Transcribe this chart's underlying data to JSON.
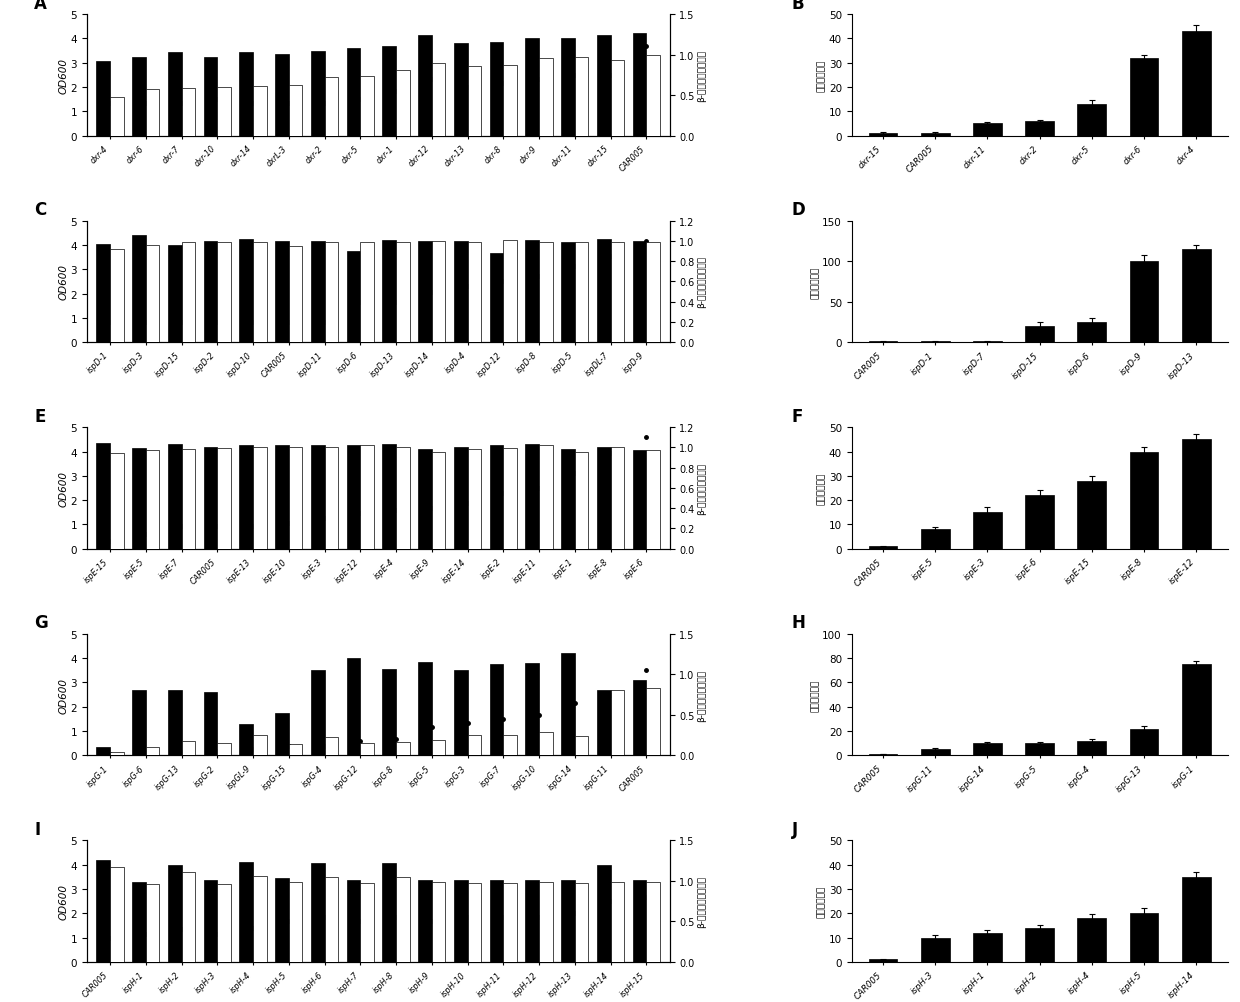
{
  "panel_A": {
    "label": "A",
    "categories": [
      "dxr-4",
      "dxr-6",
      "dxr-7",
      "dxr-10",
      "dxr-14",
      "dxrL-3",
      "dxr-2",
      "dxr-5",
      "dxr-1",
      "dxr-12",
      "dxr-13",
      "dxr-8",
      "dxr-9",
      "dxr-11",
      "dxr-15",
      "CAR005"
    ],
    "black_bars": [
      3.05,
      3.25,
      3.45,
      3.25,
      3.45,
      3.35,
      3.5,
      3.6,
      3.7,
      4.15,
      3.8,
      3.85,
      4.0,
      4.0,
      4.15,
      4.2
    ],
    "white_bars": [
      1.6,
      1.9,
      1.95,
      2.0,
      2.05,
      2.1,
      2.4,
      2.45,
      2.7,
      3.0,
      2.85,
      2.9,
      3.2,
      3.25,
      3.1,
      3.3
    ],
    "right_dots": [
      0.4,
      0.4,
      0.4,
      0.45,
      0.4,
      0.4,
      0.4,
      0.45,
      0.55,
      0.7,
      0.6,
      0.65,
      0.7,
      0.75,
      0.75,
      1.1
    ],
    "left_ylim": [
      0,
      5.0
    ],
    "right_ylim": [
      0,
      1.5
    ],
    "left_yticks": [
      0.0,
      1.0,
      2.0,
      3.0,
      4.0,
      5.0
    ],
    "right_yticks": [
      0.0,
      0.5,
      1.0,
      1.5
    ],
    "left_ylabel": "OD600",
    "right_ylabel": "β-胡萝卜素相对产量"
  },
  "panel_B": {
    "label": "B",
    "categories": [
      "dxr-15",
      "CAR005",
      "dxr-11",
      "dxr-2",
      "dxr-5",
      "dxr-6",
      "dxr-4"
    ],
    "values": [
      1,
      1,
      5,
      6,
      13,
      32,
      43
    ],
    "errors": [
      0.3,
      0.3,
      0.5,
      0.5,
      1.5,
      1.0,
      2.5
    ],
    "ylim": [
      0,
      50
    ],
    "yticks": [
      0,
      10,
      20,
      30,
      40,
      50
    ],
    "ylabel": "相对转变水平"
  },
  "panel_C": {
    "label": "C",
    "categories": [
      "ispD-1",
      "ispD-3",
      "ispD-15",
      "ispD-2",
      "ispD-10",
      "CAR005",
      "ispD-11",
      "ispD-6",
      "ispD-13",
      "ispD-14",
      "ispD-4",
      "ispD-12",
      "ispD-8",
      "ispD-5",
      "ispDL-7",
      "ispD-9"
    ],
    "black_bars": [
      4.05,
      4.4,
      4.0,
      4.15,
      4.25,
      4.15,
      4.15,
      3.75,
      4.2,
      4.15,
      4.15,
      3.65,
      4.2,
      4.1,
      4.25,
      4.15
    ],
    "white_bars": [
      3.85,
      4.0,
      4.1,
      4.1,
      4.1,
      3.95,
      4.1,
      4.1,
      4.1,
      4.15,
      4.1,
      4.2,
      4.1,
      4.1,
      4.1,
      4.1
    ],
    "right_dots": [
      0.2,
      0.2,
      0.2,
      0.2,
      0.2,
      0.2,
      0.2,
      0.4,
      0.4,
      0.5,
      0.55,
      0.6,
      0.65,
      0.75,
      0.85,
      1.0
    ],
    "left_ylim": [
      0,
      5.0
    ],
    "right_ylim": [
      0,
      1.2
    ],
    "left_yticks": [
      0.0,
      1.0,
      2.0,
      3.0,
      4.0,
      5.0
    ],
    "right_yticks": [
      0.0,
      0.2,
      0.4,
      0.6,
      0.8,
      1.0,
      1.2
    ],
    "left_ylabel": "OD600",
    "right_ylabel": "β-胡萝卜素相对产量"
  },
  "panel_D": {
    "label": "D",
    "categories": [
      "CAR005",
      "ispD-1",
      "ispD-7",
      "ispD-15",
      "ispD-6",
      "ispD-9",
      "ispD-13"
    ],
    "values": [
      1,
      1,
      1,
      20,
      25,
      100,
      115
    ],
    "errors": [
      0.3,
      0.3,
      0.3,
      5,
      5,
      8,
      5
    ],
    "ylim": [
      0,
      150
    ],
    "yticks": [
      0,
      50,
      100,
      150
    ],
    "ylabel": "相对转变水平"
  },
  "panel_E": {
    "label": "E",
    "categories": [
      "ispE-15",
      "ispE-5",
      "ispE-7",
      "CAR005",
      "ispE-13",
      "ispE-10",
      "ispE-3",
      "ispE-12",
      "ispE-4",
      "ispE-9",
      "ispE-14",
      "ispE-2",
      "ispE-11",
      "ispE-1",
      "ispE-8",
      "ispE-6"
    ],
    "black_bars": [
      4.35,
      4.15,
      4.3,
      4.2,
      4.25,
      4.25,
      4.25,
      4.25,
      4.3,
      4.1,
      4.2,
      4.25,
      4.3,
      4.1,
      4.2,
      4.05
    ],
    "white_bars": [
      3.95,
      4.05,
      4.1,
      4.15,
      4.2,
      4.2,
      4.2,
      4.25,
      4.2,
      4.0,
      4.1,
      4.15,
      4.25,
      4.0,
      4.2,
      4.05
    ],
    "right_dots": [
      0.08,
      0.15,
      0.22,
      0.22,
      0.22,
      0.25,
      0.3,
      0.35,
      0.38,
      0.4,
      0.45,
      0.55,
      0.6,
      0.75,
      0.95,
      1.1
    ],
    "left_ylim": [
      0,
      5.0
    ],
    "right_ylim": [
      0,
      1.2
    ],
    "left_yticks": [
      0,
      1,
      2,
      3,
      4,
      5
    ],
    "right_yticks": [
      0.0,
      0.2,
      0.4,
      0.6,
      0.8,
      1.0,
      1.2
    ],
    "left_ylabel": "OD600",
    "right_ylabel": "β-胡萝卜素相对产量"
  },
  "panel_F": {
    "label": "F",
    "categories": [
      "CAR005",
      "ispE-5",
      "ispE-3",
      "ispE-6",
      "ispE-15",
      "ispE-8",
      "ispE-12"
    ],
    "values": [
      1,
      8,
      15,
      22,
      28,
      40,
      45
    ],
    "errors": [
      0.3,
      1,
      2,
      2,
      2,
      2,
      2
    ],
    "ylim": [
      0,
      50
    ],
    "yticks": [
      0,
      10,
      20,
      30,
      40,
      50
    ],
    "ylabel": "相对转变水平"
  },
  "panel_G": {
    "label": "G",
    "categories": [
      "ispG-1",
      "ispG-6",
      "ispG-13",
      "ispG-2",
      "ispGL-9",
      "ispG-15",
      "ispG-4",
      "ispG-12",
      "ispG-8",
      "ispG-5",
      "ispG-3",
      "ispG-7",
      "ispG-10",
      "ispG-14",
      "ispG-11",
      "CAR005"
    ],
    "black_bars": [
      0.35,
      2.7,
      2.7,
      2.6,
      1.3,
      1.75,
      3.5,
      4.0,
      3.55,
      3.85,
      3.5,
      3.75,
      3.8,
      4.2,
      2.7,
      3.1
    ],
    "white_bars": [
      0.15,
      0.35,
      0.6,
      0.5,
      0.85,
      0.45,
      0.75,
      0.5,
      0.55,
      0.65,
      0.85,
      0.85,
      0.95,
      0.8,
      2.7,
      2.75
    ],
    "right_dots": [
      0.02,
      0.04,
      0.04,
      0.05,
      0.08,
      0.12,
      0.12,
      0.18,
      0.2,
      0.35,
      0.4,
      0.45,
      0.5,
      0.65,
      0.75,
      1.05
    ],
    "left_ylim": [
      0,
      5.0
    ],
    "right_ylim": [
      0,
      1.5
    ],
    "left_yticks": [
      0,
      1,
      2,
      3,
      4,
      5
    ],
    "right_yticks": [
      0.0,
      0.5,
      1.0,
      1.5
    ],
    "left_ylabel": "OD600",
    "right_ylabel": "β-胡萝卜素相对产量"
  },
  "panel_H": {
    "label": "H",
    "categories": [
      "CAR005",
      "ispG-11",
      "ispG-14",
      "ispG-5",
      "ispG-4",
      "ispG-13",
      "ispG-1"
    ],
    "values": [
      1,
      5,
      10,
      10,
      12,
      22,
      75
    ],
    "errors": [
      0.3,
      1,
      1,
      1,
      1.5,
      2,
      3
    ],
    "ylim": [
      0,
      100
    ],
    "yticks": [
      0,
      20,
      40,
      60,
      80,
      100
    ],
    "ylabel": "相对转变水平"
  },
  "panel_I": {
    "label": "I",
    "categories": [
      "CAR005",
      "ispH-1",
      "ispH-2",
      "ispH-3",
      "ispH-4",
      "ispH-5",
      "ispH-6",
      "ispH-7",
      "ispH-8",
      "ispH-9",
      "ispH-10",
      "ispH-11",
      "ispH-12",
      "ispH-13",
      "ispH-14",
      "ispH-15"
    ],
    "black_bars": [
      4.2,
      3.3,
      4.0,
      3.35,
      4.1,
      3.45,
      4.05,
      3.35,
      4.05,
      3.35,
      3.35,
      3.35,
      3.35,
      3.35,
      4.0,
      3.35
    ],
    "white_bars": [
      3.9,
      3.2,
      3.7,
      3.2,
      3.55,
      3.3,
      3.5,
      3.25,
      3.5,
      3.3,
      3.25,
      3.25,
      3.3,
      3.25,
      3.3,
      3.3
    ],
    "right_dots": [
      0.3,
      0.35,
      0.4,
      0.35,
      0.42,
      0.5,
      0.55,
      0.5,
      0.55,
      0.5,
      0.55,
      0.55,
      0.55,
      0.6,
      0.75,
      0.8
    ],
    "left_ylim": [
      0,
      5.0
    ],
    "right_ylim": [
      0,
      1.5
    ],
    "left_yticks": [
      0,
      1,
      2,
      3,
      4,
      5
    ],
    "right_yticks": [
      0.0,
      0.5,
      1.0,
      1.5
    ],
    "left_ylabel": "OD600",
    "right_ylabel": "β-胡萝卜素相对产量"
  },
  "panel_J": {
    "label": "J",
    "categories": [
      "CAR005",
      "ispH-3",
      "ispH-1",
      "ispH-2",
      "ispH-4",
      "ispH-5",
      "ispH-14"
    ],
    "values": [
      1,
      10,
      12,
      14,
      18,
      20,
      35
    ],
    "errors": [
      0.3,
      1,
      1,
      1,
      1.5,
      2,
      2
    ],
    "ylim": [
      0,
      50
    ],
    "yticks": [
      0,
      10,
      20,
      30,
      40,
      50
    ],
    "ylabel": "相对转变水平"
  },
  "black_color": "#000000",
  "white_color": "#ffffff",
  "bar_edge_color": "#000000"
}
